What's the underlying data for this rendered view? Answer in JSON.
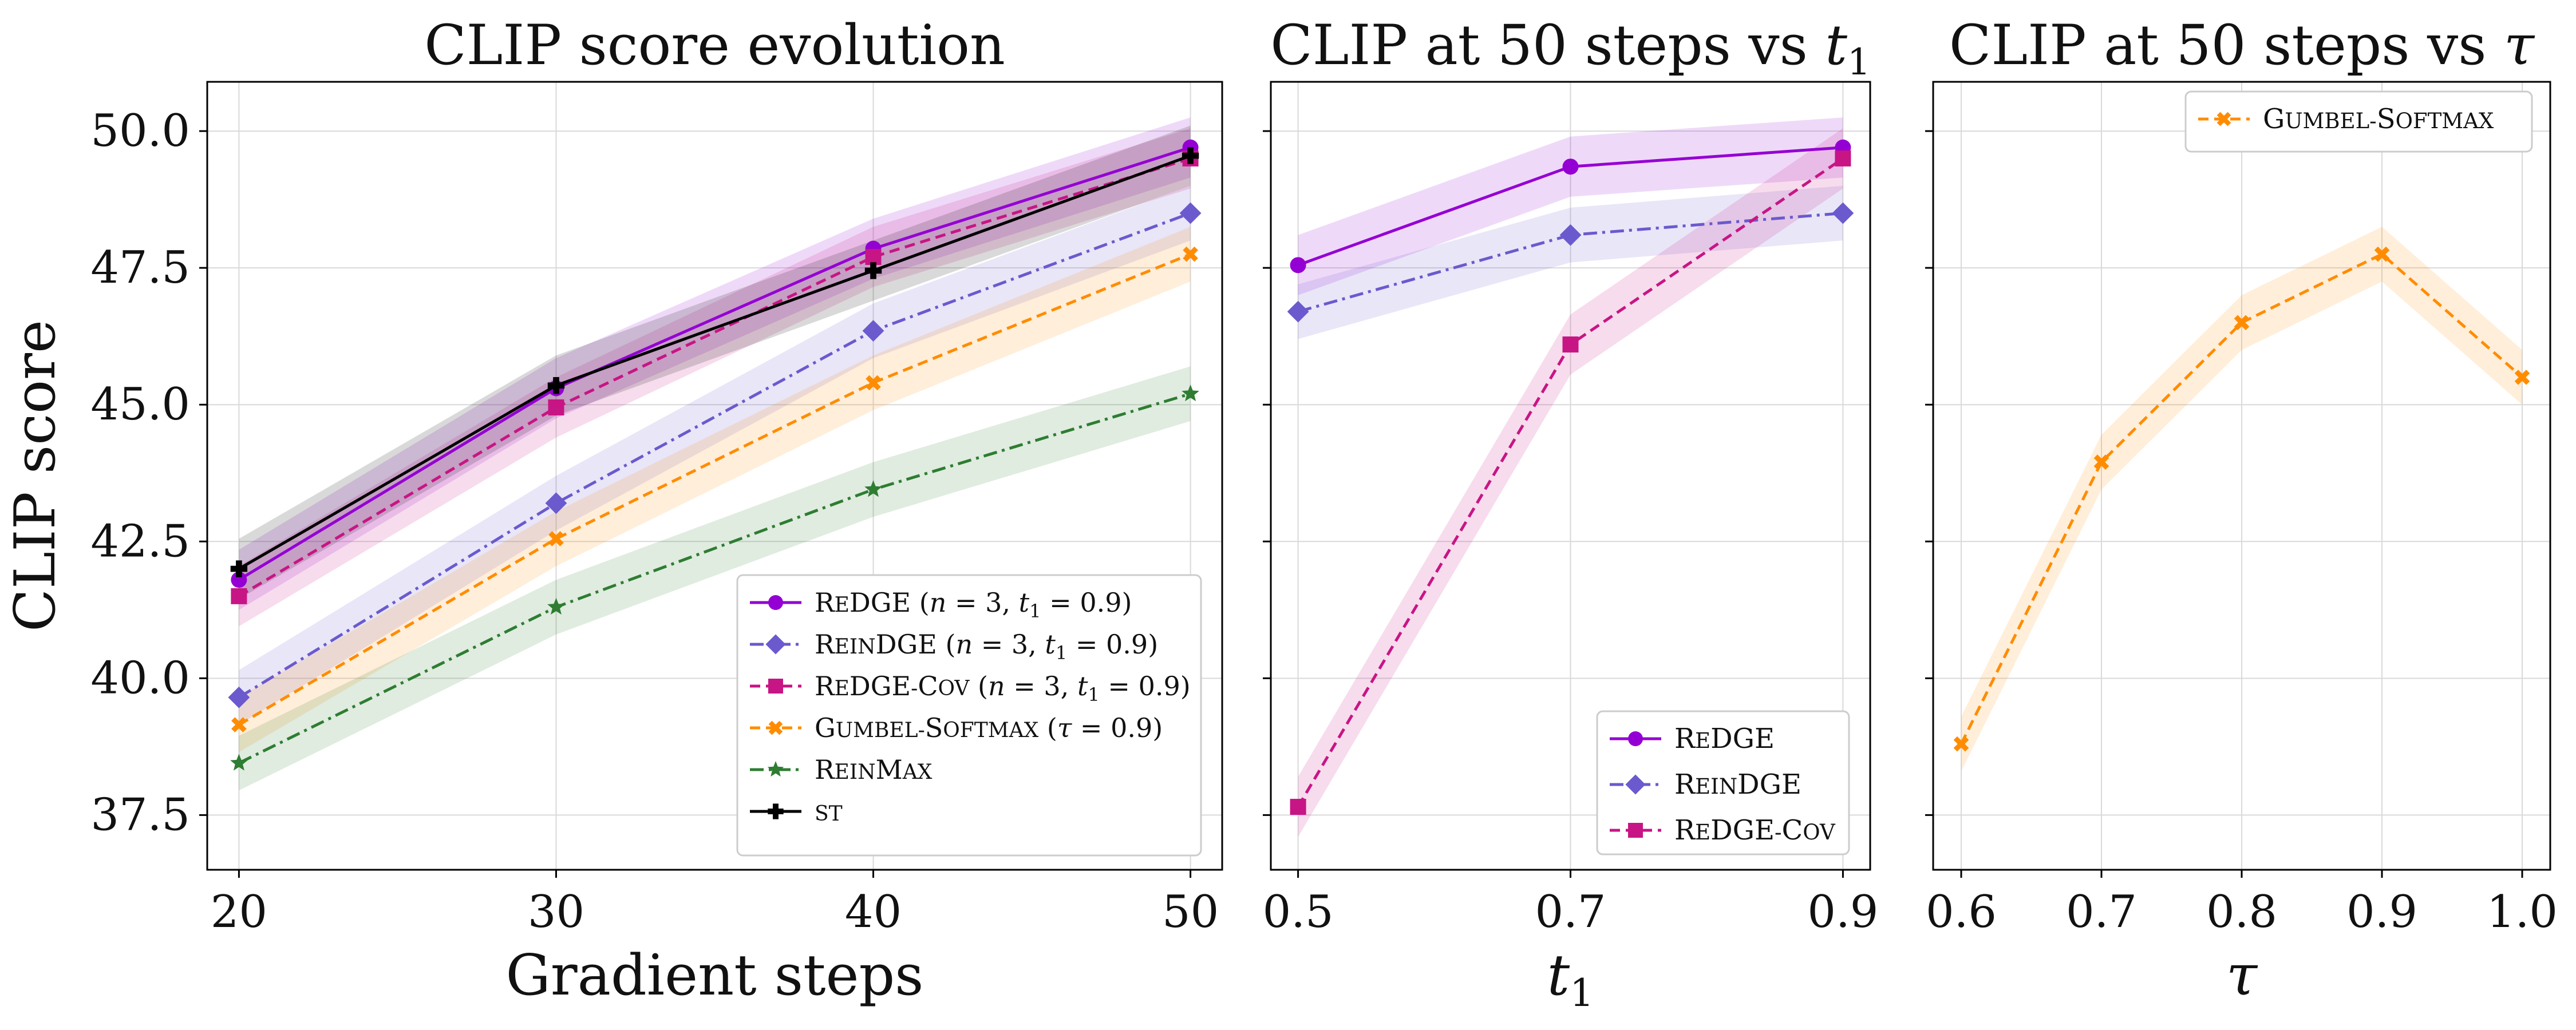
{
  "chart_data": [
    {
      "type": "line",
      "title": "CLIP score evolution",
      "xlabel": "Gradient steps",
      "ylabel": "CLIP score",
      "x": [
        20,
        30,
        40,
        50
      ],
      "xticks": [
        20,
        30,
        40,
        50
      ],
      "xtick_labels": [
        "20",
        "30",
        "40",
        "50"
      ],
      "xlim": [
        19,
        51
      ],
      "ylim": [
        36.5,
        50.9
      ],
      "yticks": [
        37.5,
        40.0,
        42.5,
        45.0,
        47.5,
        50.0
      ],
      "ytick_labels": [
        "37.5",
        "40.0",
        "42.5",
        "45.0",
        "47.5",
        "50.0"
      ],
      "grid": true,
      "legend_position": "bottom-right",
      "series": [
        {
          "name": "ReDGE (n = 3, t₁ = 0.9)",
          "values": [
            41.8,
            45.3,
            47.85,
            49.7
          ],
          "band": 0.55,
          "color": "#9400D3",
          "marker": "circle",
          "dash": "solid"
        },
        {
          "name": "ReinDGE (n = 3, t₁ = 0.9)",
          "values": [
            39.65,
            43.2,
            46.35,
            48.5
          ],
          "band": 0.5,
          "color": "#6A5ACD",
          "marker": "diamond",
          "dash": "dashdot"
        },
        {
          "name": "ReDGE-Cov (n = 3, t₁ = 0.9)",
          "values": [
            41.5,
            44.95,
            47.7,
            49.5
          ],
          "band": 0.55,
          "color": "#C71585",
          "marker": "square",
          "dash": "dashed"
        },
        {
          "name": "Gumbel-Softmax (τ = 0.9)",
          "values": [
            39.15,
            42.55,
            45.4,
            47.75
          ],
          "band": 0.5,
          "color": "#FF8C00",
          "marker": "x",
          "dash": "dashed"
        },
        {
          "name": "ReinMax",
          "values": [
            38.45,
            41.3,
            43.45,
            45.2
          ],
          "band": 0.5,
          "color": "#2E7D32",
          "marker": "star",
          "dash": "dashdot"
        },
        {
          "name": "ST",
          "values": [
            42.0,
            45.35,
            47.45,
            49.55
          ],
          "band": 0.55,
          "color": "#000000",
          "marker": "plus",
          "dash": "solid"
        }
      ]
    },
    {
      "type": "line",
      "title": "CLIP at 50 steps vs ",
      "title_var": "t",
      "title_sub": "1",
      "xlabel": "t",
      "xlabel_sub": "1",
      "x": [
        0.5,
        0.7,
        0.9
      ],
      "xticks": [
        0.5,
        0.7,
        0.9
      ],
      "xtick_labels": [
        "0.5",
        "0.7",
        "0.9"
      ],
      "xlim": [
        0.48,
        0.92
      ],
      "ylim": [
        36.5,
        50.9
      ],
      "yticks": [
        37.5,
        40.0,
        42.5,
        45.0,
        47.5,
        50.0
      ],
      "grid": true,
      "legend_position": "bottom-right",
      "series": [
        {
          "name": "ReDGE",
          "values": [
            47.55,
            49.35,
            49.7
          ],
          "band": 0.55,
          "color": "#9400D3",
          "marker": "circle",
          "dash": "solid"
        },
        {
          "name": "ReinDGE",
          "values": [
            46.7,
            48.1,
            48.5
          ],
          "band": 0.5,
          "color": "#6A5ACD",
          "marker": "diamond",
          "dash": "dashdot"
        },
        {
          "name": "ReDGE-Cov",
          "values": [
            37.65,
            46.1,
            49.5
          ],
          "band": 0.55,
          "color": "#C71585",
          "marker": "square",
          "dash": "dashed"
        }
      ]
    },
    {
      "type": "line",
      "title": "CLIP at 50 steps vs ",
      "title_var": "τ",
      "xlabel": "τ",
      "x": [
        0.6,
        0.7,
        0.8,
        0.9,
        1.0
      ],
      "xticks": [
        0.6,
        0.7,
        0.8,
        0.9,
        1.0
      ],
      "xtick_labels": [
        "0.6",
        "0.7",
        "0.8",
        "0.9",
        "1.0"
      ],
      "xlim": [
        0.58,
        1.02
      ],
      "ylim": [
        36.5,
        50.9
      ],
      "yticks": [
        37.5,
        40.0,
        42.5,
        45.0,
        47.5,
        50.0
      ],
      "grid": true,
      "legend_position": "top-right",
      "series": [
        {
          "name": "Gumbel-Softmax",
          "values": [
            38.8,
            43.95,
            46.5,
            47.75,
            45.5
          ],
          "band": 0.5,
          "color": "#FF8C00",
          "marker": "x",
          "dash": "dashed"
        }
      ]
    }
  ]
}
